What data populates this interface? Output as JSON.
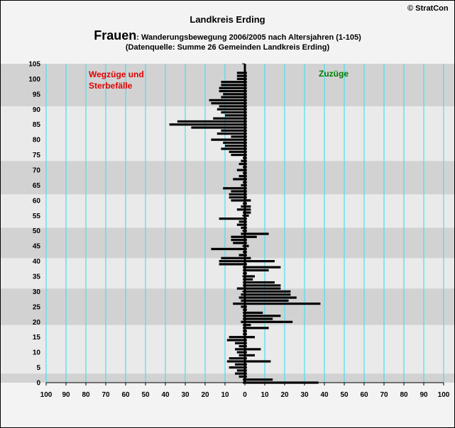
{
  "header": {
    "title": "Landkreis Erding",
    "subtitle_bold": "Frauen",
    "subtitle_rest": ": Wanderungsbewegung 2006/2005 nach Altersjahren (1-105)",
    "source": "(Datenquelle: Summe 26 Gemeinden Landkreis Erding)",
    "copyright": "© StratCon"
  },
  "labels": {
    "left_line1": "Wegzüge und",
    "left_line2": "Sterbefälle",
    "right": "Zuzüge"
  },
  "colors": {
    "background": "#f3f3f3",
    "band_light": "#eaeaea",
    "band_dark": "#d2d2d2",
    "gridline": "#48e0f0",
    "bar": "#000000",
    "left_label": "#e00000",
    "right_label": "#007a00"
  },
  "chart_data": {
    "type": "bar",
    "orientation": "horizontal",
    "title": "Landkreis Erding",
    "ylim": [
      0,
      105
    ],
    "xlim": [
      -100,
      100
    ],
    "y_ticks": [
      0,
      5,
      10,
      15,
      20,
      25,
      30,
      35,
      40,
      45,
      50,
      55,
      60,
      65,
      70,
      75,
      80,
      85,
      90,
      95,
      100,
      105
    ],
    "x_ticks": [
      -100,
      -90,
      -80,
      -70,
      -60,
      -50,
      -40,
      -30,
      -20,
      -10,
      0,
      10,
      20,
      30,
      40,
      50,
      60,
      70,
      80,
      90,
      100
    ],
    "x_tick_labels": [
      "100",
      "90",
      "80",
      "70",
      "60",
      "50",
      "40",
      "30",
      "20",
      "10",
      "0",
      "10",
      "20",
      "30",
      "40",
      "50",
      "60",
      "70",
      "80",
      "90",
      "100"
    ],
    "grid": true,
    "series": [
      {
        "name": "Wegzüge und Sterbefälle",
        "ages": [
          0,
          1,
          2,
          3,
          4,
          5,
          6,
          7,
          8,
          9,
          10,
          11,
          12,
          13,
          14,
          15,
          16,
          17,
          18,
          19,
          20,
          21,
          22,
          23,
          24,
          25,
          26,
          27,
          28,
          29,
          30,
          31,
          32,
          33,
          34,
          35,
          36,
          37,
          38,
          39,
          40,
          41,
          42,
          43,
          44,
          45,
          46,
          47,
          48,
          49,
          50,
          51,
          52,
          53,
          54,
          55,
          56,
          57,
          58,
          59,
          60,
          61,
          62,
          63,
          64,
          65,
          66,
          67,
          68,
          69,
          70,
          71,
          72,
          73,
          74,
          75,
          76,
          77,
          78,
          79,
          80,
          81,
          82,
          83,
          84,
          85,
          86,
          87,
          88,
          89,
          90,
          91,
          92,
          93,
          94,
          95,
          96,
          97,
          98,
          99,
          100,
          101,
          102
        ],
        "values": [
          -1,
          -1,
          -3,
          -5,
          -4,
          -8,
          -5,
          -9,
          -8,
          -3,
          -4,
          -5,
          -3,
          -5,
          -9,
          -8,
          -1,
          -1,
          -1,
          -1,
          -2,
          -1,
          -1,
          -1,
          -1,
          -2,
          -6,
          -2,
          -3,
          -2,
          -1,
          -4,
          -1,
          -1,
          -1,
          -1,
          -1,
          -1,
          -1,
          -13,
          -13,
          -12,
          -3,
          -1,
          -17,
          -1,
          -6,
          -7,
          -7,
          -2,
          -1,
          -2,
          -4,
          -3,
          -13,
          -1,
          -1,
          -4,
          -2,
          -1,
          -7,
          -8,
          -8,
          -7,
          -11,
          -2,
          -1,
          -6,
          -3,
          -1,
          -4,
          -1,
          -3,
          -2,
          -1,
          -7,
          -8,
          -12,
          -10,
          -11,
          -17,
          -7,
          -14,
          -12,
          -27,
          -38,
          -34,
          -16,
          -10,
          -12,
          -14,
          -13,
          -17,
          -18,
          -12,
          -11,
          -13,
          -13,
          -12,
          -12,
          -4,
          -4,
          -4
        ]
      },
      {
        "name": "Zuzüge",
        "ages": [
          0,
          1,
          2,
          3,
          4,
          5,
          6,
          7,
          8,
          9,
          10,
          11,
          12,
          13,
          14,
          15,
          16,
          17,
          18,
          19,
          20,
          21,
          22,
          23,
          24,
          25,
          26,
          27,
          28,
          29,
          30,
          31,
          32,
          33,
          34,
          35,
          36,
          37,
          38,
          39,
          40,
          41,
          42,
          43,
          44,
          45,
          46,
          47,
          48,
          49,
          50,
          51,
          52,
          53,
          54,
          55,
          56,
          57,
          58,
          59,
          60,
          61,
          62,
          63,
          64,
          65,
          66,
          67,
          68,
          69,
          70,
          71,
          72,
          73,
          74,
          75,
          76,
          77,
          78,
          79,
          80,
          81,
          82,
          83,
          84,
          85,
          86,
          87,
          88,
          89,
          90,
          91,
          92,
          93,
          94,
          95,
          96,
          97,
          98,
          99,
          100,
          101,
          102
        ],
        "values": [
          37,
          14,
          1,
          1,
          1,
          1,
          1,
          13,
          1,
          5,
          1,
          8,
          1,
          1,
          1,
          5,
          1,
          1,
          12,
          3,
          24,
          14,
          18,
          9,
          1,
          1,
          38,
          22,
          26,
          23,
          23,
          18,
          18,
          15,
          4,
          5,
          1,
          12,
          18,
          1,
          15,
          3,
          1,
          1,
          1,
          2,
          1,
          1,
          6,
          12,
          1,
          1,
          1,
          1,
          1,
          2,
          3,
          3,
          3,
          1,
          3,
          1,
          1,
          1,
          1,
          1,
          1,
          1,
          1,
          1,
          1,
          1,
          1,
          1,
          1,
          1,
          1,
          1,
          1,
          1,
          1,
          1,
          1,
          1,
          1,
          1,
          1,
          1,
          1,
          1,
          1,
          1,
          1,
          1,
          1,
          1,
          1,
          1,
          1,
          1,
          1,
          1,
          1
        ]
      }
    ]
  }
}
